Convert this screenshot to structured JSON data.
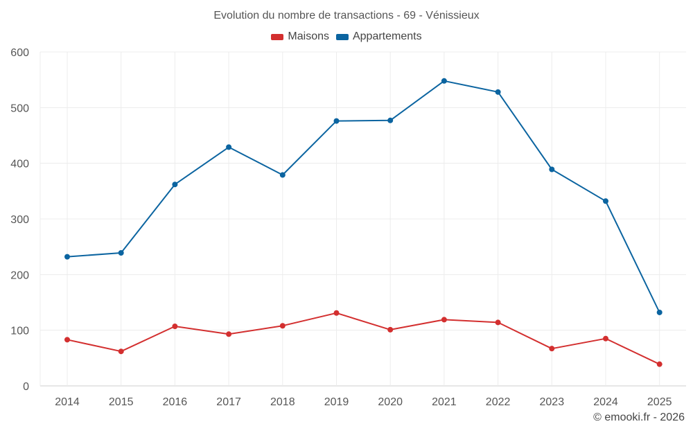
{
  "chart_data": {
    "type": "line",
    "title": "Evolution du nombre de transactions - 69 - Vénissieux",
    "x": [
      "2014",
      "2015",
      "2016",
      "2017",
      "2018",
      "2019",
      "2020",
      "2021",
      "2022",
      "2023",
      "2024",
      "2025"
    ],
    "series": [
      {
        "name": "Maisons",
        "color": "#d32f2f",
        "values": [
          83,
          62,
          107,
          93,
          108,
          131,
          101,
          119,
          114,
          67,
          85,
          39
        ]
      },
      {
        "name": "Appartements",
        "color": "#0b64a0",
        "values": [
          232,
          239,
          362,
          429,
          379,
          476,
          477,
          548,
          528,
          389,
          332,
          132
        ]
      }
    ],
    "xlabel": "",
    "ylabel": "",
    "ylim": [
      0,
      600
    ],
    "yticks": [
      0,
      100,
      200,
      300,
      400,
      500,
      600
    ],
    "grid": true,
    "legend_position": "top-center"
  },
  "credit": "© emooki.fr - 2026"
}
